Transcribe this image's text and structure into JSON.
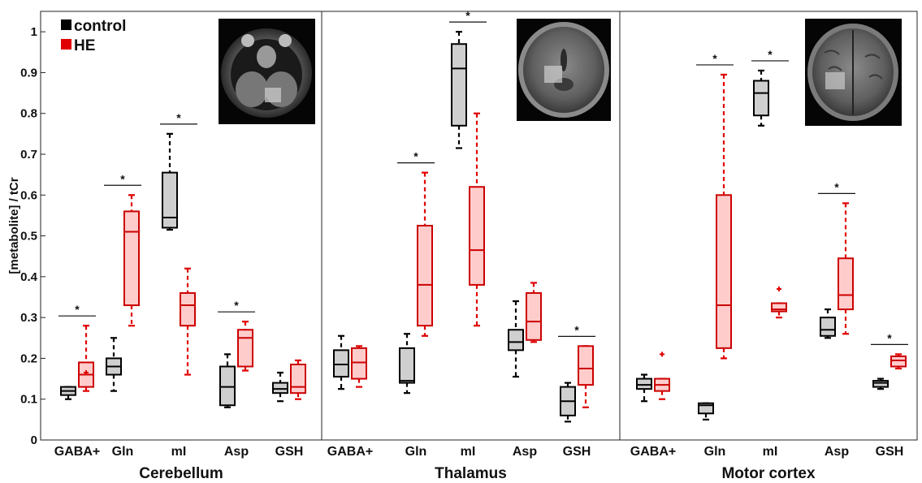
{
  "chart_data": {
    "type": "box",
    "ylabel": "[metabolite] / tCr",
    "ylim": [
      0,
      1.05
    ],
    "yticks": [
      "0",
      "0.1",
      "0.2",
      "0.3",
      "0.4",
      "0.5",
      "0.6",
      "0.7",
      "0.8",
      "0.9",
      "1"
    ],
    "legend": {
      "position": "top-left",
      "entries": [
        {
          "name": "control",
          "color": "#000000"
        },
        {
          "name": "HE",
          "color": "#e00000"
        }
      ]
    },
    "categories": [
      "GABA+",
      "Gln",
      "mI",
      "Asp",
      "GSH"
    ],
    "significance_marker": "*",
    "panels": [
      {
        "region": "Cerebellum",
        "inset": "axial MRI slice with cerebellar voxel",
        "groups": [
          {
            "category": "GABA+",
            "significant": true,
            "control": {
              "low": 0.1,
              "q1": 0.11,
              "median": 0.12,
              "q3": 0.13,
              "high": 0.13,
              "outliers": []
            },
            "HE": {
              "low": 0.12,
              "q1": 0.13,
              "median": 0.16,
              "q3": 0.19,
              "high": 0.28,
              "outliers": [
                0.165
              ]
            }
          },
          {
            "category": "Gln",
            "significant": true,
            "control": {
              "low": 0.12,
              "q1": 0.16,
              "median": 0.18,
              "q3": 0.2,
              "high": 0.25,
              "outliers": []
            },
            "HE": {
              "low": 0.28,
              "q1": 0.33,
              "median": 0.51,
              "q3": 0.56,
              "high": 0.6,
              "outliers": []
            }
          },
          {
            "category": "mI",
            "significant": true,
            "control": {
              "low": 0.515,
              "q1": 0.52,
              "median": 0.545,
              "q3": 0.655,
              "high": 0.75,
              "outliers": []
            },
            "HE": {
              "low": 0.16,
              "q1": 0.28,
              "median": 0.33,
              "q3": 0.36,
              "high": 0.42,
              "outliers": []
            }
          },
          {
            "category": "Asp",
            "significant": true,
            "control": {
              "low": 0.08,
              "q1": 0.085,
              "median": 0.13,
              "q3": 0.18,
              "high": 0.21,
              "outliers": []
            },
            "HE": {
              "low": 0.17,
              "q1": 0.18,
              "median": 0.25,
              "q3": 0.27,
              "high": 0.29,
              "outliers": []
            }
          },
          {
            "category": "GSH",
            "significant": false,
            "control": {
              "low": 0.095,
              "q1": 0.115,
              "median": 0.125,
              "q3": 0.14,
              "high": 0.165,
              "outliers": []
            },
            "HE": {
              "low": 0.1,
              "q1": 0.115,
              "median": 0.13,
              "q3": 0.185,
              "high": 0.195,
              "outliers": []
            }
          }
        ]
      },
      {
        "region": "Thalamus",
        "inset": "axial MRI slice with thalamic voxel",
        "groups": [
          {
            "category": "GABA+",
            "significant": false,
            "control": {
              "low": 0.125,
              "q1": 0.155,
              "median": 0.185,
              "q3": 0.22,
              "high": 0.255,
              "outliers": []
            },
            "HE": {
              "low": 0.13,
              "q1": 0.15,
              "median": 0.19,
              "q3": 0.225,
              "high": 0.23,
              "outliers": []
            }
          },
          {
            "category": "Gln",
            "significant": true,
            "control": {
              "low": 0.115,
              "q1": 0.14,
              "median": 0.145,
              "q3": 0.225,
              "high": 0.26,
              "outliers": []
            },
            "HE": {
              "low": 0.255,
              "q1": 0.28,
              "median": 0.38,
              "q3": 0.525,
              "high": 0.655,
              "outliers": []
            }
          },
          {
            "category": "mI",
            "significant": true,
            "control": {
              "low": 0.715,
              "q1": 0.77,
              "median": 0.91,
              "q3": 0.97,
              "high": 1.0,
              "outliers": []
            },
            "HE": {
              "low": 0.28,
              "q1": 0.38,
              "median": 0.465,
              "q3": 0.62,
              "high": 0.8,
              "outliers": []
            }
          },
          {
            "category": "Asp",
            "significant": false,
            "control": {
              "low": 0.155,
              "q1": 0.22,
              "median": 0.24,
              "q3": 0.27,
              "high": 0.34,
              "outliers": []
            },
            "HE": {
              "low": 0.24,
              "q1": 0.245,
              "median": 0.29,
              "q3": 0.36,
              "high": 0.385,
              "outliers": []
            }
          },
          {
            "category": "GSH",
            "significant": true,
            "control": {
              "low": 0.045,
              "q1": 0.06,
              "median": 0.095,
              "q3": 0.13,
              "high": 0.14,
              "outliers": []
            },
            "HE": {
              "low": 0.08,
              "q1": 0.135,
              "median": 0.175,
              "q3": 0.23,
              "high": 0.23,
              "outliers": []
            }
          }
        ]
      },
      {
        "region": "Motor cortex",
        "inset": "axial MRI slice with motor cortex voxel",
        "groups": [
          {
            "category": "GABA+",
            "significant": false,
            "control": {
              "low": 0.095,
              "q1": 0.125,
              "median": 0.135,
              "q3": 0.15,
              "high": 0.16,
              "outliers": []
            },
            "HE": {
              "low": 0.1,
              "q1": 0.12,
              "median": 0.135,
              "q3": 0.15,
              "high": 0.15,
              "outliers": [
                0.21
              ]
            }
          },
          {
            "category": "Gln",
            "significant": true,
            "control": {
              "low": 0.05,
              "q1": 0.065,
              "median": 0.085,
              "q3": 0.09,
              "high": 0.09,
              "outliers": []
            },
            "HE": {
              "low": 0.2,
              "q1": 0.225,
              "median": 0.33,
              "q3": 0.6,
              "high": 0.895,
              "outliers": []
            }
          },
          {
            "category": "mI",
            "significant": true,
            "control": {
              "low": 0.77,
              "q1": 0.795,
              "median": 0.85,
              "q3": 0.88,
              "high": 0.905,
              "outliers": []
            },
            "HE": {
              "low": 0.3,
              "q1": 0.315,
              "median": 0.32,
              "q3": 0.335,
              "high": 0.335,
              "outliers": [
                0.37
              ]
            }
          },
          {
            "category": "Asp",
            "significant": true,
            "control": {
              "low": 0.25,
              "q1": 0.255,
              "median": 0.27,
              "q3": 0.3,
              "high": 0.32,
              "outliers": []
            },
            "HE": {
              "low": 0.26,
              "q1": 0.32,
              "median": 0.355,
              "q3": 0.445,
              "high": 0.58,
              "outliers": []
            }
          },
          {
            "category": "GSH",
            "significant": true,
            "control": {
              "low": 0.125,
              "q1": 0.13,
              "median": 0.14,
              "q3": 0.145,
              "high": 0.15,
              "outliers": []
            },
            "HE": {
              "low": 0.175,
              "q1": 0.18,
              "median": 0.195,
              "q3": 0.205,
              "high": 0.21,
              "outliers": []
            }
          }
        ]
      }
    ]
  },
  "colors": {
    "control_edge": "#000000",
    "control_fill": "#cfcfcf",
    "HE_edge": "#cc0000",
    "HE_fill": "#ffcccc",
    "HE_whisker": "#e00000"
  }
}
